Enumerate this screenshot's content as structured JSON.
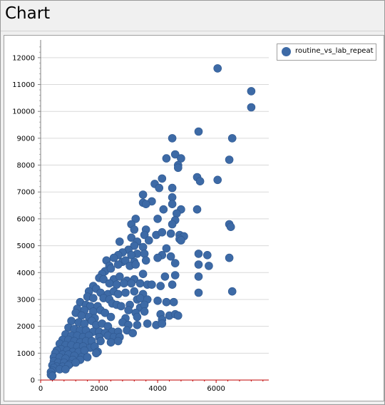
{
  "window": {
    "title": "Chart"
  },
  "chart_data": {
    "type": "scatter",
    "series": [
      {
        "name": "routine_vs_lab_repeat",
        "color": "#3d6aa6",
        "points": [
          [
            6050,
            11600
          ],
          [
            7200,
            10750
          ],
          [
            7200,
            10150
          ],
          [
            5400,
            9250
          ],
          [
            4500,
            9000
          ],
          [
            6550,
            9000
          ],
          [
            4600,
            8400
          ],
          [
            4800,
            8250
          ],
          [
            4300,
            8250
          ],
          [
            6450,
            8200
          ],
          [
            4700,
            8000
          ],
          [
            4700,
            7900
          ],
          [
            5350,
            7550
          ],
          [
            5450,
            7400
          ],
          [
            6050,
            7450
          ],
          [
            3900,
            7300
          ],
          [
            4150,
            7500
          ],
          [
            4050,
            7150
          ],
          [
            3500,
            6900
          ],
          [
            4500,
            7150
          ],
          [
            4500,
            6800
          ],
          [
            3800,
            6650
          ],
          [
            3500,
            6600
          ],
          [
            3600,
            6550
          ],
          [
            4500,
            6550
          ],
          [
            4200,
            6350
          ],
          [
            4800,
            6350
          ],
          [
            5350,
            6350
          ],
          [
            4650,
            6200
          ],
          [
            3250,
            6000
          ],
          [
            4000,
            6000
          ],
          [
            4600,
            5950
          ],
          [
            4500,
            5800
          ],
          [
            3100,
            5800
          ],
          [
            3200,
            5600
          ],
          [
            3600,
            5600
          ],
          [
            3550,
            5400
          ],
          [
            3950,
            5400
          ],
          [
            4150,
            5500
          ],
          [
            4450,
            5450
          ],
          [
            6450,
            5800
          ],
          [
            6500,
            5700
          ],
          [
            4750,
            5400
          ],
          [
            4900,
            5350
          ],
          [
            4750,
            5250
          ],
          [
            4800,
            5200
          ],
          [
            3100,
            5300
          ],
          [
            3700,
            5200
          ],
          [
            2700,
            5150
          ],
          [
            3300,
            5150
          ],
          [
            3200,
            5000
          ],
          [
            3500,
            4950
          ],
          [
            3000,
            4850
          ],
          [
            4300,
            4900
          ],
          [
            2800,
            4750
          ],
          [
            3300,
            4700
          ],
          [
            3550,
            4700
          ],
          [
            2650,
            4650
          ],
          [
            3100,
            4650
          ],
          [
            4150,
            4650
          ],
          [
            4450,
            4600
          ],
          [
            4000,
            4550
          ],
          [
            2500,
            4550
          ],
          [
            2250,
            4450
          ],
          [
            2800,
            4400
          ],
          [
            2900,
            4450
          ],
          [
            3200,
            4400
          ],
          [
            3600,
            4450
          ],
          [
            4600,
            4350
          ],
          [
            2350,
            4250
          ],
          [
            2650,
            4300
          ],
          [
            3050,
            4250
          ],
          [
            3250,
            4300
          ],
          [
            5400,
            4700
          ],
          [
            5700,
            4650
          ],
          [
            6450,
            4550
          ],
          [
            5400,
            4300
          ],
          [
            5750,
            4250
          ],
          [
            2200,
            4050
          ],
          [
            2400,
            4150
          ],
          [
            2100,
            3950
          ],
          [
            2000,
            3800
          ],
          [
            2150,
            3750
          ],
          [
            2500,
            3750
          ],
          [
            2700,
            3850
          ],
          [
            3500,
            3950
          ],
          [
            4250,
            3850
          ],
          [
            4600,
            3900
          ],
          [
            5400,
            3850
          ],
          [
            2950,
            3700
          ],
          [
            3200,
            3750
          ],
          [
            2350,
            3600
          ],
          [
            2600,
            3550
          ],
          [
            2850,
            3600
          ],
          [
            3100,
            3600
          ],
          [
            3400,
            3600
          ],
          [
            3650,
            3550
          ],
          [
            3800,
            3550
          ],
          [
            4100,
            3500
          ],
          [
            4500,
            3550
          ],
          [
            5400,
            3250
          ],
          [
            6550,
            3300
          ],
          [
            1800,
            3500
          ],
          [
            1900,
            3400
          ],
          [
            1650,
            3300
          ],
          [
            2050,
            3250
          ],
          [
            2300,
            3200
          ],
          [
            2500,
            3300
          ],
          [
            2650,
            3200
          ],
          [
            2900,
            3250
          ],
          [
            3200,
            3300
          ],
          [
            3500,
            3200
          ],
          [
            1600,
            3100
          ],
          [
            1800,
            3050
          ],
          [
            2150,
            3050
          ],
          [
            2350,
            3000
          ],
          [
            3300,
            3000
          ],
          [
            3400,
            3050
          ],
          [
            3650,
            3000
          ],
          [
            4000,
            2950
          ],
          [
            4300,
            2900
          ],
          [
            4550,
            2900
          ],
          [
            1350,
            2900
          ],
          [
            1550,
            2800
          ],
          [
            1700,
            2750
          ],
          [
            1950,
            2750
          ],
          [
            2450,
            2850
          ],
          [
            2600,
            2800
          ],
          [
            2750,
            2750
          ],
          [
            3050,
            2800
          ],
          [
            3400,
            2700
          ],
          [
            3550,
            2800
          ],
          [
            1250,
            2650
          ],
          [
            1500,
            2600
          ],
          [
            1800,
            2550
          ],
          [
            2050,
            2600
          ],
          [
            2200,
            2500
          ],
          [
            3000,
            2600
          ],
          [
            3250,
            2500
          ],
          [
            3550,
            2550
          ],
          [
            4100,
            2450
          ],
          [
            4400,
            2400
          ],
          [
            4600,
            2450
          ],
          [
            4700,
            2400
          ],
          [
            1200,
            2500
          ],
          [
            1400,
            2400
          ],
          [
            1650,
            2350
          ],
          [
            1850,
            2300
          ],
          [
            2400,
            2350
          ],
          [
            2900,
            2300
          ],
          [
            3300,
            2350
          ],
          [
            4150,
            2250
          ],
          [
            1050,
            2200
          ],
          [
            1300,
            2150
          ],
          [
            1500,
            2100
          ],
          [
            1750,
            2200
          ],
          [
            1900,
            2050
          ],
          [
            2100,
            2100
          ],
          [
            2300,
            2000
          ],
          [
            2800,
            2150
          ],
          [
            3000,
            2050
          ],
          [
            3300,
            2050
          ],
          [
            3650,
            2100
          ],
          [
            3950,
            2050
          ],
          [
            4150,
            2100
          ],
          [
            950,
            1950
          ],
          [
            1150,
            1900
          ],
          [
            1350,
            1850
          ],
          [
            1550,
            1850
          ],
          [
            1800,
            1800
          ],
          [
            2000,
            1800
          ],
          [
            2200,
            1750
          ],
          [
            2450,
            1800
          ],
          [
            2650,
            1800
          ],
          [
            2950,
            1850
          ],
          [
            3150,
            1750
          ],
          [
            850,
            1700
          ],
          [
            1050,
            1650
          ],
          [
            1250,
            1650
          ],
          [
            1450,
            1600
          ],
          [
            1650,
            1650
          ],
          [
            2000,
            1600
          ],
          [
            2300,
            1650
          ],
          [
            2500,
            1600
          ],
          [
            2700,
            1600
          ],
          [
            750,
            1500
          ],
          [
            950,
            1500
          ],
          [
            1150,
            1450
          ],
          [
            1350,
            1400
          ],
          [
            1550,
            1450
          ],
          [
            1750,
            1450
          ],
          [
            2050,
            1450
          ],
          [
            2400,
            1400
          ],
          [
            2650,
            1450
          ],
          [
            650,
            1350
          ],
          [
            850,
            1300
          ],
          [
            1050,
            1300
          ],
          [
            1250,
            1250
          ],
          [
            1450,
            1250
          ],
          [
            1700,
            1200
          ],
          [
            1850,
            1250
          ],
          [
            700,
            1150
          ],
          [
            550,
            1100
          ],
          [
            900,
            1100
          ],
          [
            1100,
            1050
          ],
          [
            1300,
            1050
          ],
          [
            1500,
            1100
          ],
          [
            1950,
            1050
          ],
          [
            500,
            1000
          ],
          [
            750,
            950
          ],
          [
            950,
            950
          ],
          [
            1150,
            900
          ],
          [
            1400,
            850
          ],
          [
            1600,
            850
          ],
          [
            1900,
            1000
          ],
          [
            450,
            850
          ],
          [
            650,
            850
          ],
          [
            850,
            800
          ],
          [
            1100,
            750
          ],
          [
            1350,
            750
          ],
          [
            450,
            700
          ],
          [
            600,
            650
          ],
          [
            800,
            650
          ],
          [
            1000,
            600
          ],
          [
            1200,
            650
          ],
          [
            400,
            550
          ],
          [
            550,
            500
          ],
          [
            750,
            500
          ],
          [
            950,
            550
          ],
          [
            450,
            450
          ],
          [
            650,
            400
          ],
          [
            850,
            400
          ],
          [
            400,
            350
          ],
          [
            350,
            300
          ],
          [
            350,
            200
          ],
          [
            400,
            150
          ]
        ]
      }
    ],
    "xlim": [
      0,
      7800
    ],
    "ylim": [
      0,
      12500
    ],
    "xticks": [
      0,
      2000,
      4000,
      6000
    ],
    "yticks": [
      0,
      1000,
      2000,
      3000,
      4000,
      5000,
      6000,
      7000,
      8000,
      9000,
      10000,
      11000,
      12000
    ],
    "grid": "horizontal",
    "legend": "top-right"
  }
}
